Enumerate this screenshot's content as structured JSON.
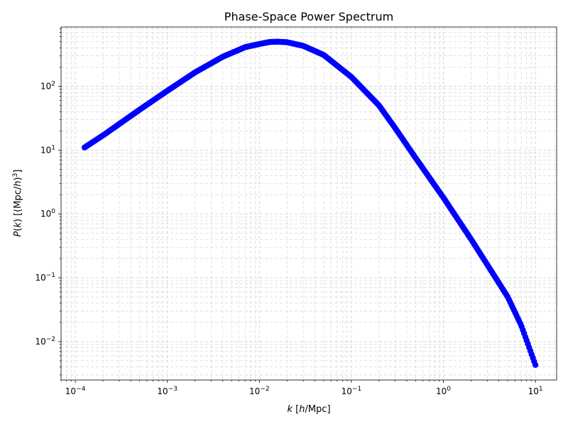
{
  "chart_data": {
    "type": "scatter",
    "title": "Phase-Space Power Spectrum",
    "xlabel_parts": [
      "k",
      " [",
      "h",
      "/Mpc]"
    ],
    "ylabel_parts": [
      "P",
      "(",
      "k",
      ") [(Mpc/",
      "h",
      ")",
      "3",
      "]"
    ],
    "xscale": "log",
    "yscale": "log",
    "xlim": [
      7e-05,
      17
    ],
    "ylim": [
      0.0025,
      850
    ],
    "grid": true,
    "grid_color": "#d3d3d3",
    "marker_color": "#0000ff",
    "x_ticks": [
      {
        "value": 0.0001,
        "base": "10",
        "exp": "−4"
      },
      {
        "value": 0.001,
        "base": "10",
        "exp": "−3"
      },
      {
        "value": 0.01,
        "base": "10",
        "exp": "−2"
      },
      {
        "value": 0.1,
        "base": "10",
        "exp": "−1"
      },
      {
        "value": 1,
        "base": "10",
        "exp": "0"
      },
      {
        "value": 10,
        "base": "10",
        "exp": "1"
      }
    ],
    "y_ticks": [
      {
        "value": 0.01,
        "base": "10",
        "exp": "−2"
      },
      {
        "value": 0.1,
        "base": "10",
        "exp": "−1"
      },
      {
        "value": 1,
        "base": "10",
        "exp": "0"
      },
      {
        "value": 10,
        "base": "10",
        "exp": "1"
      },
      {
        "value": 100,
        "base": "10",
        "exp": "2"
      }
    ],
    "series": [
      {
        "x": [
          0.000126,
          0.0002,
          0.0005,
          0.001,
          0.002,
          0.004,
          0.007,
          0.01,
          0.013,
          0.016,
          0.02,
          0.03,
          0.05,
          0.1,
          0.2,
          0.3,
          0.5,
          1,
          2,
          3,
          5,
          7,
          10
        ],
        "y": [
          11,
          17,
          43,
          85,
          165,
          290,
          410,
          460,
          495,
          500,
          490,
          430,
          310,
          140,
          50,
          22,
          7.5,
          1.8,
          0.4,
          0.16,
          0.05,
          0.018,
          0.0043
        ]
      }
    ]
  }
}
